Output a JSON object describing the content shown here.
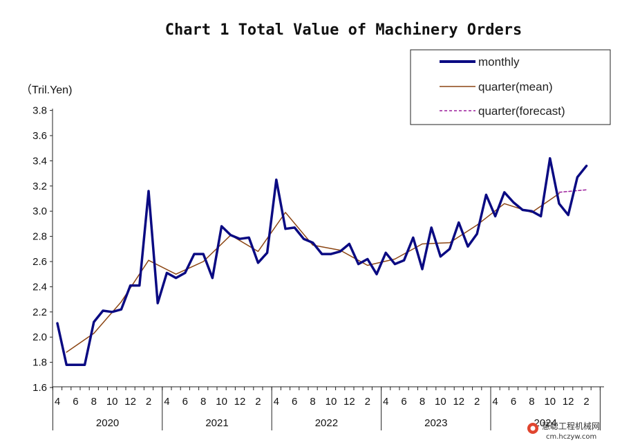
{
  "chart_data": {
    "type": "line",
    "title": "Chart 1 Total Value of Machinery Orders",
    "ylabel": "（Tril.Yen)",
    "ylim": [
      1.6,
      3.8
    ],
    "yticks": [
      "1.6",
      "1.8",
      "2.0",
      "2.2",
      "2.4",
      "2.6",
      "2.8",
      "3.0",
      "3.2",
      "3.4",
      "3.6",
      "3.8"
    ],
    "grid": false,
    "legend_position": "top-right",
    "month_tick_labels": [
      "4",
      "6",
      "8",
      "10",
      "12",
      "2"
    ],
    "years": [
      "2020",
      "2021",
      "2022",
      "2023",
      "2024"
    ],
    "series": [
      {
        "name": "monthly",
        "color": "#0a0a82",
        "style": "solid-thick",
        "x": [
          "2020-04",
          "2020-05",
          "2020-06",
          "2020-07",
          "2020-08",
          "2020-09",
          "2020-10",
          "2020-11",
          "2020-12",
          "2021-01",
          "2021-02",
          "2021-03",
          "2021-04",
          "2021-05",
          "2021-06",
          "2021-07",
          "2021-08",
          "2021-09",
          "2021-10",
          "2021-11",
          "2021-12",
          "2022-01",
          "2022-02",
          "2022-03",
          "2022-04",
          "2022-05",
          "2022-06",
          "2022-07",
          "2022-08",
          "2022-09",
          "2022-10",
          "2022-11",
          "2022-12",
          "2023-01",
          "2023-02",
          "2023-03",
          "2023-04",
          "2023-05",
          "2023-06",
          "2023-07",
          "2023-08",
          "2023-09",
          "2023-10",
          "2023-11",
          "2023-12",
          "2024-01",
          "2024-02",
          "2024-03",
          "2024-04",
          "2024-05",
          "2024-06",
          "2024-07",
          "2024-08",
          "2024-09",
          "2024-10",
          "2024-11",
          "2024-12",
          "2025-01",
          "2025-02"
        ],
        "values": [
          2.11,
          1.78,
          1.78,
          1.78,
          2.12,
          2.21,
          2.2,
          2.22,
          2.41,
          2.41,
          3.16,
          2.27,
          2.51,
          2.47,
          2.51,
          2.66,
          2.66,
          2.47,
          2.88,
          2.81,
          2.78,
          2.79,
          2.59,
          2.67,
          3.25,
          2.86,
          2.87,
          2.78,
          2.75,
          2.66,
          2.66,
          2.68,
          2.74,
          2.58,
          2.62,
          2.5,
          2.67,
          2.58,
          2.61,
          2.79,
          2.54,
          2.87,
          2.64,
          2.7,
          2.91,
          2.72,
          2.82,
          3.13,
          2.96,
          3.15,
          3.07,
          3.01,
          3.0,
          2.96,
          3.42,
          3.06,
          2.97,
          3.27,
          3.36
        ]
      },
      {
        "name": "quarter(mean)",
        "color": "#8b4513",
        "style": "solid-thin",
        "x": [
          "2020-05",
          "2020-08",
          "2020-11",
          "2021-02",
          "2021-05",
          "2021-08",
          "2021-11",
          "2022-02",
          "2022-05",
          "2022-08",
          "2022-11",
          "2023-02",
          "2023-05",
          "2023-08",
          "2023-11",
          "2024-02",
          "2024-05",
          "2024-08",
          "2024-11"
        ],
        "values": [
          1.88,
          2.03,
          2.28,
          2.61,
          2.5,
          2.6,
          2.81,
          2.68,
          2.99,
          2.73,
          2.69,
          2.57,
          2.62,
          2.74,
          2.75,
          2.89,
          3.06,
          2.99,
          3.14
        ]
      },
      {
        "name": "quarter(forecast)",
        "color": "#9b1c9b",
        "style": "dashed",
        "x": [
          "2024-11",
          "2025-02"
        ],
        "values": [
          3.15,
          3.17
        ]
      }
    ]
  },
  "watermark": {
    "text_main": "慧聪工程机械网",
    "text_url": "cm.hczyw.com"
  }
}
